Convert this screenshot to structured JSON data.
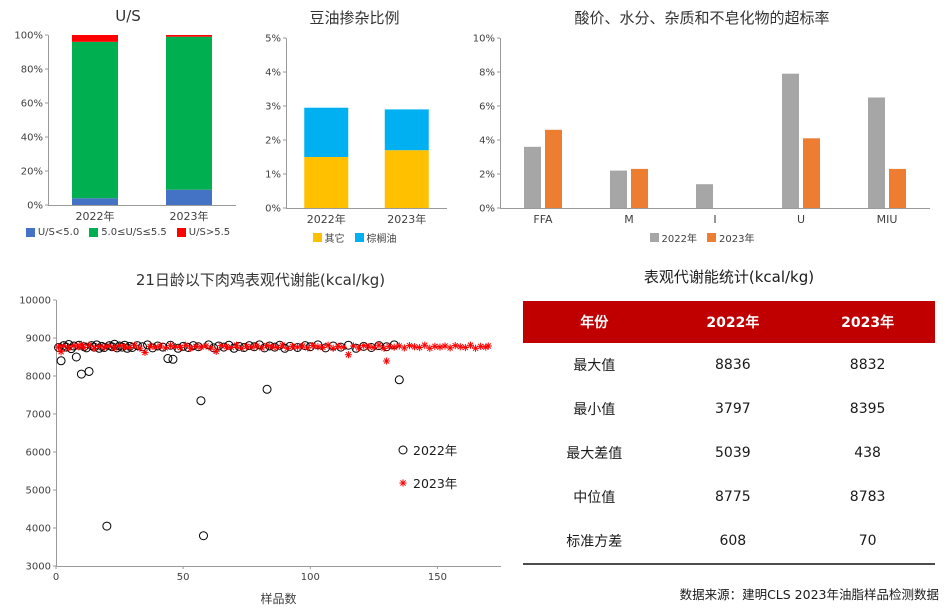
{
  "page": {
    "source_note": "数据来源：建明CLS 2023年油脂样品检测数据"
  },
  "chart_data": [
    {
      "id": "us_ratio",
      "type": "bar",
      "subtype": "stacked",
      "title": "U/S",
      "categories": [
        "2022年",
        "2023年"
      ],
      "series": [
        {
          "name": "U/S<5.0",
          "color": "#4472C4",
          "values": [
            4,
            9
          ]
        },
        {
          "name": "5.0≤U/S≤5.5",
          "color": "#00B050",
          "values": [
            92,
            90
          ]
        },
        {
          "name": "U/S>5.5",
          "color": "#FF0000",
          "values": [
            4,
            1
          ]
        }
      ],
      "ylim": [
        0,
        100
      ],
      "ytick_step": 20,
      "yformat": "percent",
      "grid": false,
      "legend_position": "bottom"
    },
    {
      "id": "soybean_adulteration",
      "type": "bar",
      "subtype": "stacked",
      "title": "豆油掺杂比例",
      "categories": [
        "2022年",
        "2023年"
      ],
      "series": [
        {
          "name": "其它",
          "color": "#FFC000",
          "values": [
            1.5,
            1.7
          ]
        },
        {
          "name": "棕榈油",
          "color": "#00B0F0",
          "values": [
            1.45,
            1.2
          ]
        }
      ],
      "ylim": [
        0,
        5
      ],
      "ytick_step": 1,
      "yformat": "percent",
      "grid": false,
      "legend_position": "bottom"
    },
    {
      "id": "exceed_rate",
      "type": "bar",
      "subtype": "grouped",
      "title": "酸价、水分、杂质和不皂化物的超标率",
      "categories": [
        "FFA",
        "M",
        "I",
        "U",
        "MIU"
      ],
      "series": [
        {
          "name": "2022年",
          "color": "#A6A6A6",
          "values": [
            3.6,
            2.2,
            1.4,
            7.9,
            6.5
          ]
        },
        {
          "name": "2023年",
          "color": "#ED7D31",
          "values": [
            4.6,
            2.3,
            0,
            4.1,
            2.3
          ]
        }
      ],
      "ylim": [
        0,
        10
      ],
      "ytick_step": 2,
      "yformat": "percent",
      "grid": false,
      "legend_position": "bottom"
    },
    {
      "id": "ame_scatter",
      "type": "scatter",
      "title": "21日龄以下肉鸡表观代谢能(kcal/kg)",
      "xlabel": "样品数",
      "ylabel": "",
      "xlim": [
        0,
        175
      ],
      "xticks": [
        0,
        50,
        100,
        150
      ],
      "ylim": [
        3000,
        10000
      ],
      "ytick_step": 1000,
      "grid": false,
      "legend_position": "inside-right",
      "series": [
        {
          "name": "2022年",
          "marker": "circle",
          "color": "#000000",
          "points": [
            [
              1,
              8750
            ],
            [
              2,
              8400
            ],
            [
              3,
              8800
            ],
            [
              4,
              8760
            ],
            [
              5,
              8830
            ],
            [
              6,
              8720
            ],
            [
              7,
              8790
            ],
            [
              8,
              8500
            ],
            [
              9,
              8810
            ],
            [
              10,
              8050
            ],
            [
              11,
              8770
            ],
            [
              12,
              8740
            ],
            [
              13,
              8120
            ],
            [
              14,
              8800
            ],
            [
              15,
              8760
            ],
            [
              16,
              8820
            ],
            [
              17,
              8730
            ],
            [
              18,
              8780
            ],
            [
              19,
              8750
            ],
            [
              20,
              4050
            ],
            [
              21,
              8800
            ],
            [
              22,
              8770
            ],
            [
              23,
              8836
            ],
            [
              24,
              8740
            ],
            [
              25,
              8790
            ],
            [
              26,
              8760
            ],
            [
              27,
              8810
            ],
            [
              28,
              8730
            ],
            [
              29,
              8780
            ],
            [
              30,
              8750
            ],
            [
              32,
              8800
            ],
            [
              34,
              8770
            ],
            [
              36,
              8820
            ],
            [
              38,
              8740
            ],
            [
              40,
              8790
            ],
            [
              42,
              8760
            ],
            [
              44,
              8460
            ],
            [
              45,
              8810
            ],
            [
              46,
              8440
            ],
            [
              48,
              8730
            ],
            [
              50,
              8780
            ],
            [
              52,
              8750
            ],
            [
              54,
              8800
            ],
            [
              56,
              8770
            ],
            [
              57,
              7350
            ],
            [
              58,
              3797
            ],
            [
              60,
              8820
            ],
            [
              62,
              8740
            ],
            [
              64,
              8790
            ],
            [
              66,
              8760
            ],
            [
              68,
              8810
            ],
            [
              70,
              8730
            ],
            [
              72,
              8780
            ],
            [
              74,
              8750
            ],
            [
              76,
              8800
            ],
            [
              78,
              8770
            ],
            [
              80,
              8820
            ],
            [
              82,
              8740
            ],
            [
              83,
              7650
            ],
            [
              84,
              8790
            ],
            [
              86,
              8760
            ],
            [
              88,
              8810
            ],
            [
              90,
              8730
            ],
            [
              92,
              8780
            ],
            [
              95,
              8750
            ],
            [
              98,
              8800
            ],
            [
              100,
              8770
            ],
            [
              103,
              8820
            ],
            [
              106,
              8740
            ],
            [
              109,
              8790
            ],
            [
              112,
              8760
            ],
            [
              115,
              8810
            ],
            [
              118,
              8730
            ],
            [
              121,
              8780
            ],
            [
              124,
              8750
            ],
            [
              127,
              8800
            ],
            [
              130,
              8770
            ],
            [
              133,
              8820
            ],
            [
              135,
              7900
            ]
          ]
        },
        {
          "name": "2023年",
          "marker": "star",
          "color": "#FF0000",
          "points": [
            [
              1,
              8760
            ],
            [
              2,
              8640
            ],
            [
              3,
              8790
            ],
            [
              5,
              8740
            ],
            [
              7,
              8800
            ],
            [
              9,
              8770
            ],
            [
              10,
              8832
            ],
            [
              11,
              8750
            ],
            [
              13,
              8810
            ],
            [
              15,
              8730
            ],
            [
              17,
              8780
            ],
            [
              19,
              8760
            ],
            [
              21,
              8790
            ],
            [
              23,
              8740
            ],
            [
              25,
              8800
            ],
            [
              27,
              8770
            ],
            [
              29,
              8750
            ],
            [
              31,
              8810
            ],
            [
              33,
              8730
            ],
            [
              35,
              8620
            ],
            [
              37,
              8780
            ],
            [
              39,
              8760
            ],
            [
              41,
              8790
            ],
            [
              43,
              8740
            ],
            [
              45,
              8800
            ],
            [
              47,
              8770
            ],
            [
              49,
              8750
            ],
            [
              51,
              8810
            ],
            [
              53,
              8730
            ],
            [
              55,
              8780
            ],
            [
              57,
              8760
            ],
            [
              59,
              8790
            ],
            [
              61,
              8740
            ],
            [
              63,
              8650
            ],
            [
              65,
              8800
            ],
            [
              67,
              8770
            ],
            [
              69,
              8750
            ],
            [
              71,
              8810
            ],
            [
              73,
              8730
            ],
            [
              75,
              8780
            ],
            [
              77,
              8760
            ],
            [
              79,
              8790
            ],
            [
              81,
              8740
            ],
            [
              83,
              8800
            ],
            [
              85,
              8770
            ],
            [
              87,
              8750
            ],
            [
              89,
              8810
            ],
            [
              91,
              8730
            ],
            [
              93,
              8780
            ],
            [
              95,
              8760
            ],
            [
              97,
              8790
            ],
            [
              99,
              8740
            ],
            [
              101,
              8800
            ],
            [
              103,
              8770
            ],
            [
              105,
              8750
            ],
            [
              107,
              8810
            ],
            [
              109,
              8730
            ],
            [
              111,
              8780
            ],
            [
              113,
              8760
            ],
            [
              115,
              8560
            ],
            [
              117,
              8790
            ],
            [
              119,
              8740
            ],
            [
              121,
              8800
            ],
            [
              123,
              8770
            ],
            [
              125,
              8750
            ],
            [
              127,
              8810
            ],
            [
              129,
              8730
            ],
            [
              130,
              8395
            ],
            [
              131,
              8780
            ],
            [
              133,
              8760
            ],
            [
              135,
              8790
            ],
            [
              137,
              8740
            ],
            [
              139,
              8800
            ],
            [
              141,
              8770
            ],
            [
              143,
              8750
            ],
            [
              145,
              8810
            ],
            [
              147,
              8730
            ],
            [
              149,
              8780
            ],
            [
              151,
              8760
            ],
            [
              153,
              8790
            ],
            [
              155,
              8740
            ],
            [
              157,
              8800
            ],
            [
              159,
              8770
            ],
            [
              161,
              8750
            ],
            [
              163,
              8810
            ],
            [
              165,
              8730
            ],
            [
              167,
              8780
            ],
            [
              169,
              8760
            ],
            [
              170,
              8790
            ]
          ]
        }
      ]
    }
  ],
  "stats_table": {
    "title": "表观代谢能统计(kcal/kg)",
    "header": [
      "年份",
      "2022年",
      "2023年"
    ],
    "rows": [
      [
        "最大值",
        "8836",
        "8832"
      ],
      [
        "最小值",
        "3797",
        "8395"
      ],
      [
        "最大差值",
        "5039",
        "438"
      ],
      [
        "中位值",
        "8775",
        "8783"
      ],
      [
        "标准方差",
        "608",
        "70"
      ]
    ],
    "header_bg": "#C00000",
    "header_text_color": "#FFFFFF"
  }
}
